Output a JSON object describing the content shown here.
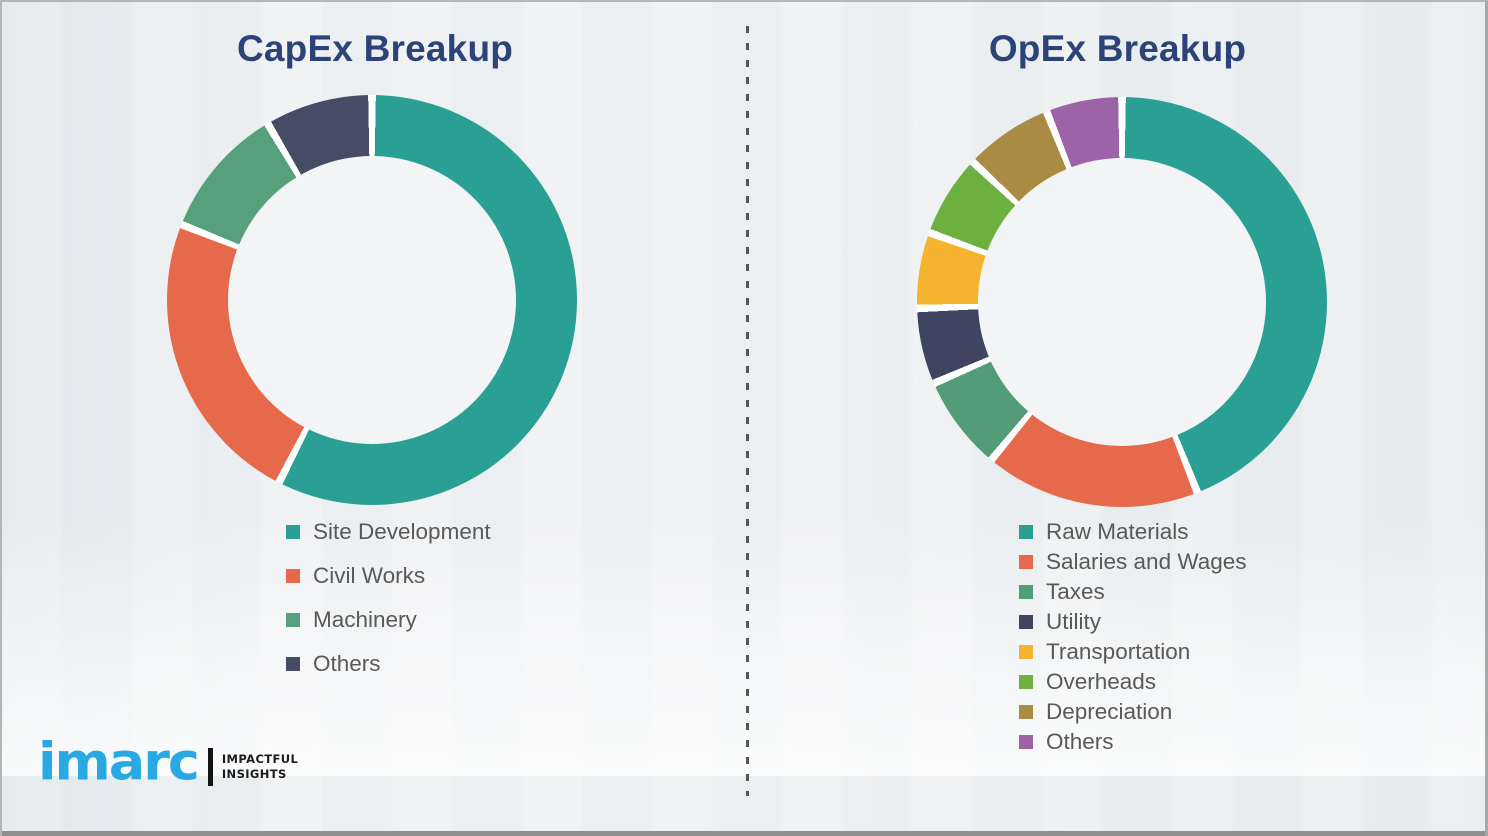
{
  "chart_data": [
    {
      "type": "pie",
      "subtype": "donut",
      "title": "CapEx Breakup",
      "categories": [
        "Site Development",
        "Civil Works",
        "Machinery",
        "Others"
      ],
      "values": [
        57.5,
        23.5,
        10.5,
        8.5
      ],
      "colors": [
        "#2aa094",
        "#e5694a",
        "#56a17b",
        "#474c66"
      ],
      "units": "percent",
      "start_angle_deg": 0,
      "direction": "clockwise",
      "legend_position": "below-left",
      "segment_separator_color": "#ffffff"
    },
    {
      "type": "pie",
      "subtype": "donut",
      "title": "OpEx Breakup",
      "categories": [
        "Raw Materials",
        "Salaries and Wages",
        "Taxes",
        "Utility",
        "Transportation",
        "Overheads",
        "Depreciation",
        "Others"
      ],
      "values": [
        44,
        17,
        7.5,
        6,
        6,
        6.5,
        7,
        6
      ],
      "colors": [
        "#2aa094",
        "#e5694a",
        "#529d78",
        "#3f4460",
        "#f6b32f",
        "#6cb03f",
        "#a98b43",
        "#9c64a6"
      ],
      "units": "percent",
      "start_angle_deg": 0,
      "direction": "clockwise",
      "legend_position": "below-left",
      "segment_separator_color": "#ffffff"
    }
  ],
  "branding": {
    "logo_text": "imarc",
    "tagline_line1": "IMPACTFUL",
    "tagline_line2": "INSIGHTS",
    "logo_color": "#29a9e1",
    "title_color": "#2c4377",
    "legend_text_color": "#595959"
  }
}
